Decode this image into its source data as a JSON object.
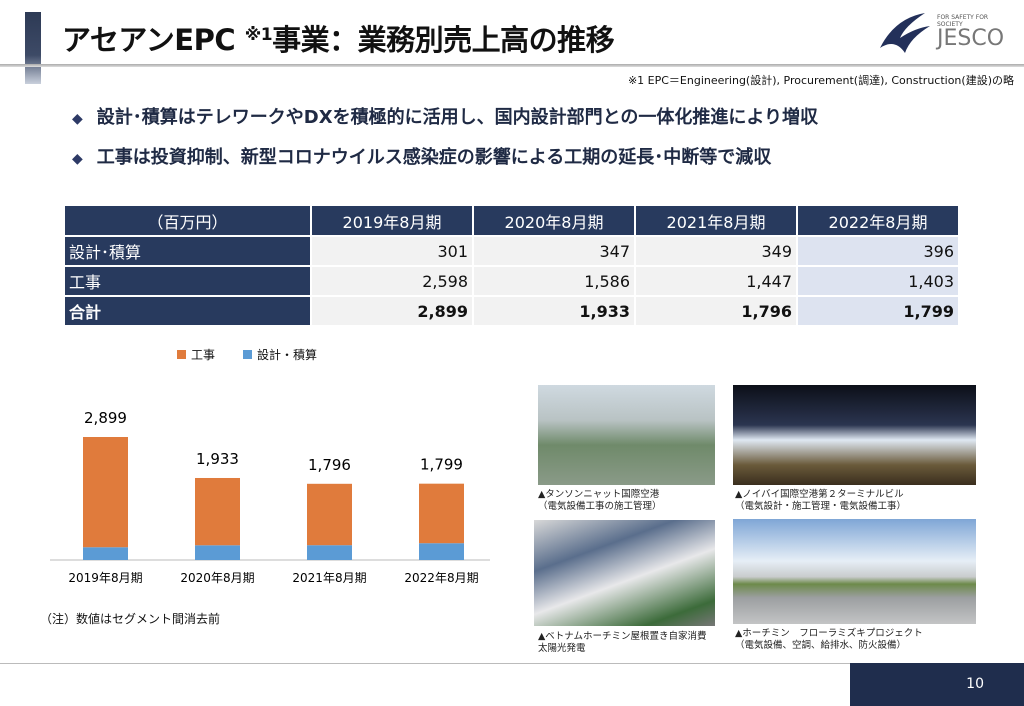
{
  "header": {
    "title_a": "アセアンEPC ",
    "title_sup": "※1",
    "title_b": "事業：業務別売上高の推移",
    "logo_tagline": "FOR SAFETY FOR SOCIETY",
    "logo_text": "JESCO",
    "note": "※1 EPC＝Engineering(設計), Procurement(調達), Construction(建設)の略"
  },
  "bullets": [
    "設計･積算はテレワークやDXを積極的に活用し、国内設計部門との一体化推進により増収",
    "工事は投資抑制、新型コロナウイルス感染症の影響による工期の延長･中断等で減収"
  ],
  "table": {
    "headers": [
      "（百万円）",
      "2019年8月期",
      "2020年8月期",
      "2021年8月期",
      "2022年8月期"
    ],
    "rows": [
      {
        "label": "設計･積算",
        "values": [
          "301",
          "347",
          "349",
          "396"
        ]
      },
      {
        "label": "工事",
        "values": [
          "2,598",
          "1,586",
          "1,447",
          "1,403"
        ]
      },
      {
        "label": "合計",
        "values": [
          "2,899",
          "1,933",
          "1,796",
          "1,799"
        ]
      }
    ]
  },
  "chart_data": {
    "type": "bar",
    "stacked": true,
    "categories": [
      "2019年8月期",
      "2020年8月期",
      "2021年8月期",
      "2022年8月期"
    ],
    "series": [
      {
        "name": "設計・積算",
        "values": [
          301,
          347,
          349,
          396
        ],
        "color": "#5b9bd5"
      },
      {
        "name": "工事",
        "values": [
          2598,
          1586,
          1447,
          1403
        ],
        "color": "#e07b3c"
      }
    ],
    "totals": [
      "2,899",
      "1,933",
      "1,796",
      "1,799"
    ],
    "legend": "top"
  },
  "footnote": "（注）数値はセグメント間消去前",
  "photos": [
    {
      "caption1": "▲タンソンニャット国際空港",
      "caption2": "（電気設備工事の施工管理）"
    },
    {
      "caption1": "▲ノイバイ国際空港第２ターミナルビル",
      "caption2": "（電気設計・施工管理・電気設備工事）"
    },
    {
      "caption1": "▲ベトナムホーチミン屋根置き自家消費",
      "caption2": "太陽光発電"
    },
    {
      "caption1": "▲ホーチミン　フローラミズキプロジェクト",
      "caption2": "（電気設備、空調、給排水、防火設備）"
    }
  ],
  "page_number": "10"
}
